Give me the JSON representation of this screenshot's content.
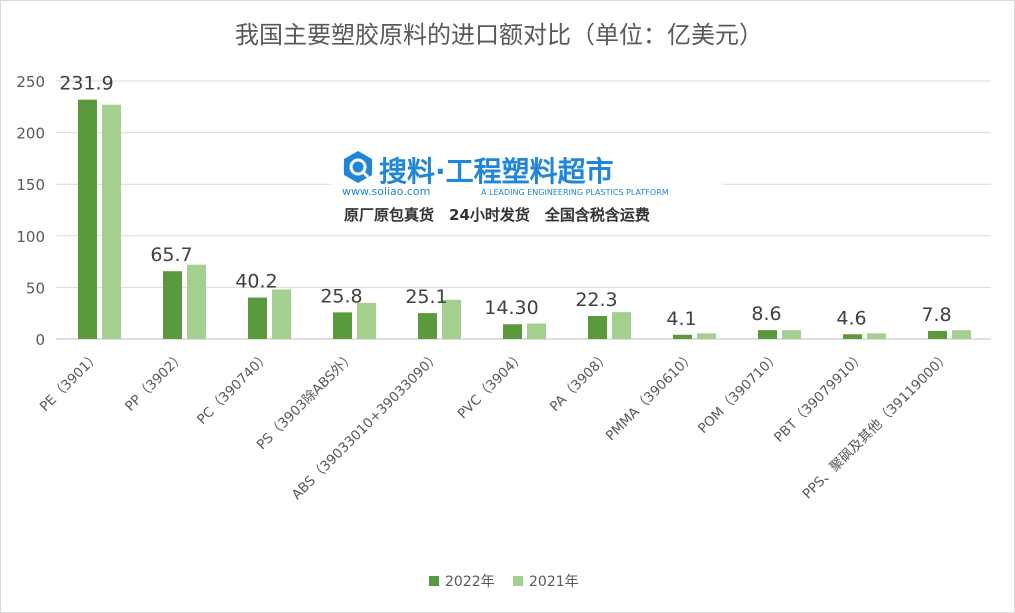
{
  "chart_data": {
    "type": "bar",
    "title": "我国主要塑胶原料的进口额对比（单位：亿美元）",
    "xlabel": "",
    "ylabel": "",
    "ylim": [
      0,
      250
    ],
    "yticks": [
      0,
      50,
      100,
      150,
      200,
      250
    ],
    "grid": true,
    "legend_position": "bottom",
    "categories": [
      "PE（3901）",
      "PP（3902）",
      "PC（390740）",
      "PS（3903除ABS外）",
      "ABS（39033010+39033090）",
      "PVC（3904）",
      "PA（3908）",
      "PMMA（390610）",
      "POM（390710）",
      "PBT（39079910）",
      "PPS、聚砜及其他（39119000）"
    ],
    "series": [
      {
        "name": "2022年",
        "color": "#5b9a3c",
        "values": [
          231.9,
          65.7,
          40.2,
          25.8,
          25.1,
          14.3,
          22.3,
          4.1,
          8.6,
          4.6,
          7.8
        ]
      },
      {
        "name": "2021年",
        "color": "#a3cf8f",
        "values": [
          227,
          72,
          48,
          35,
          38,
          15,
          26,
          5.5,
          8.5,
          5.5,
          8.5
        ]
      }
    ],
    "data_labels": [
      "231.9",
      "65.7",
      "40.2",
      "25.8",
      "25.1",
      "14.30",
      "22.3",
      "4.1",
      "8.6",
      "4.6",
      "7.8"
    ]
  },
  "watermark": {
    "brand": "搜料·工程塑料超市",
    "url": "www.soliao.com",
    "tagline": "A LEADING ENGINEERING PLASTICS PLATFORM",
    "slogans": "原厂原包真货　24小时发货　全国含税含运费",
    "color": "#1f86d8"
  }
}
